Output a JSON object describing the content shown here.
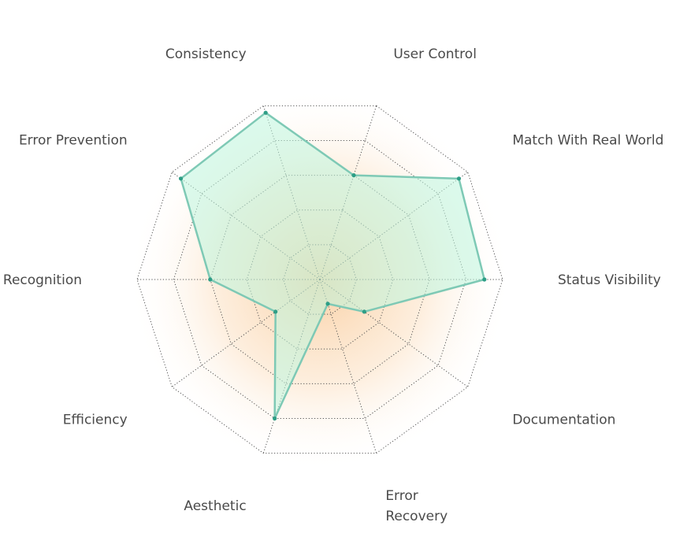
{
  "chart_data": {
    "type": "radar",
    "title": "",
    "axes": [
      "User Control",
      "Match With Real World",
      "Status Visibility",
      "Documentation",
      "Error\nRecovery",
      "Aesthetic",
      "Efficiency",
      "Recognition",
      "Error Prevention",
      "Consistency"
    ],
    "range": [
      0,
      5
    ],
    "rings": 5,
    "series": [
      {
        "values": [
          3.0,
          4.7,
          4.5,
          1.5,
          0.7,
          4.0,
          1.5,
          3.0,
          4.7,
          4.8
        ]
      }
    ],
    "colors": {
      "area_fill": "#bdf5df",
      "area_stroke": "#7ec9b5",
      "point": "#2e9e86",
      "background_glow": "#f6b26b"
    },
    "grid": true
  }
}
